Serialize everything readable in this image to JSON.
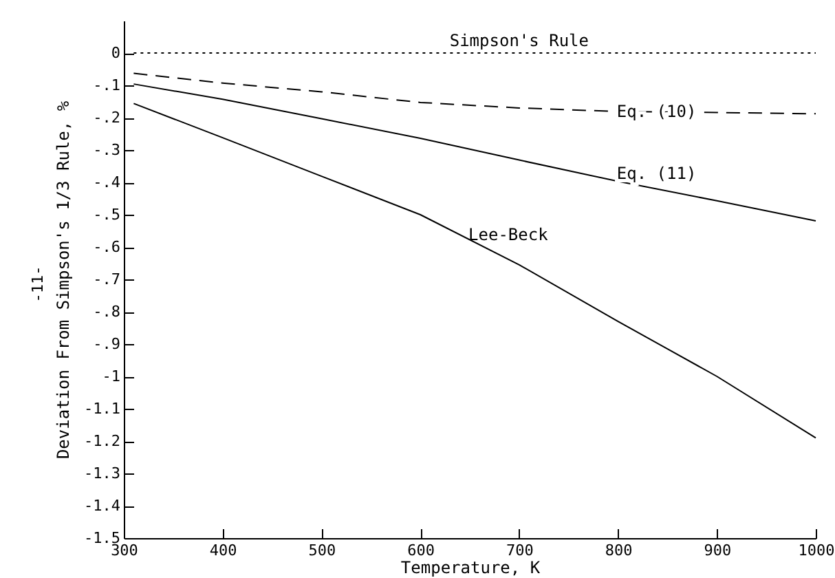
{
  "chart_data": {
    "type": "line",
    "xlabel": "Temperature, K",
    "ylabel": "Deviation From Simpson's 1/3 Rule, %",
    "x": [
      310,
      400,
      500,
      600,
      700,
      800,
      900,
      1000
    ],
    "series": [
      {
        "name": "Simpson's Rule",
        "color": "#000000",
        "line_style": "dotted",
        "values": [
          0,
          0,
          0,
          0,
          0,
          0,
          0,
          0
        ]
      },
      {
        "name": "Eq. (10)",
        "color": "#000000",
        "line_style": "dashed",
        "values": [
          -0.063,
          -0.093,
          -0.12,
          -0.153,
          -0.17,
          -0.181,
          -0.184,
          -0.188
        ]
      },
      {
        "name": "Eq. (11)",
        "color": "#000000",
        "line_style": "solid",
        "values": [
          -0.096,
          -0.143,
          -0.203,
          -0.264,
          -0.331,
          -0.397,
          -0.457,
          -0.519
        ]
      },
      {
        "name": "Lee-Beck",
        "color": "#000000",
        "line_style": "solid",
        "values": [
          -0.156,
          -0.262,
          -0.381,
          -0.5,
          -0.655,
          -0.83,
          -1.0,
          -1.19
        ]
      }
    ],
    "xlim": [
      300,
      1000
    ],
    "xticks": [
      300,
      400,
      500,
      600,
      700,
      800,
      900,
      1000
    ],
    "ylim": [
      -1.5,
      0.1
    ],
    "yticks": [
      {
        "value": 0,
        "label": "0"
      },
      {
        "value": -0.1,
        "label": "-.1"
      },
      {
        "value": -0.2,
        "label": "-.2"
      },
      {
        "value": -0.3,
        "label": "-.3"
      },
      {
        "value": -0.4,
        "label": "-.4"
      },
      {
        "value": -0.5,
        "label": "-.5"
      },
      {
        "value": -0.6,
        "label": "-.6"
      },
      {
        "value": -0.7,
        "label": "-.7"
      },
      {
        "value": -0.8,
        "label": "-.8"
      },
      {
        "value": -0.9,
        "label": "-.9"
      },
      {
        "value": -1,
        "label": "-1"
      },
      {
        "value": -1.1,
        "label": "-1.1"
      },
      {
        "value": -1.2,
        "label": "-1.2"
      },
      {
        "value": -1.3,
        "label": "-1.3"
      },
      {
        "value": -1.4,
        "label": "-1.4"
      },
      {
        "value": -1.5,
        "label": "-1.5"
      }
    ],
    "grid": false,
    "marker": "none",
    "annotations": [
      "-11-"
    ]
  }
}
